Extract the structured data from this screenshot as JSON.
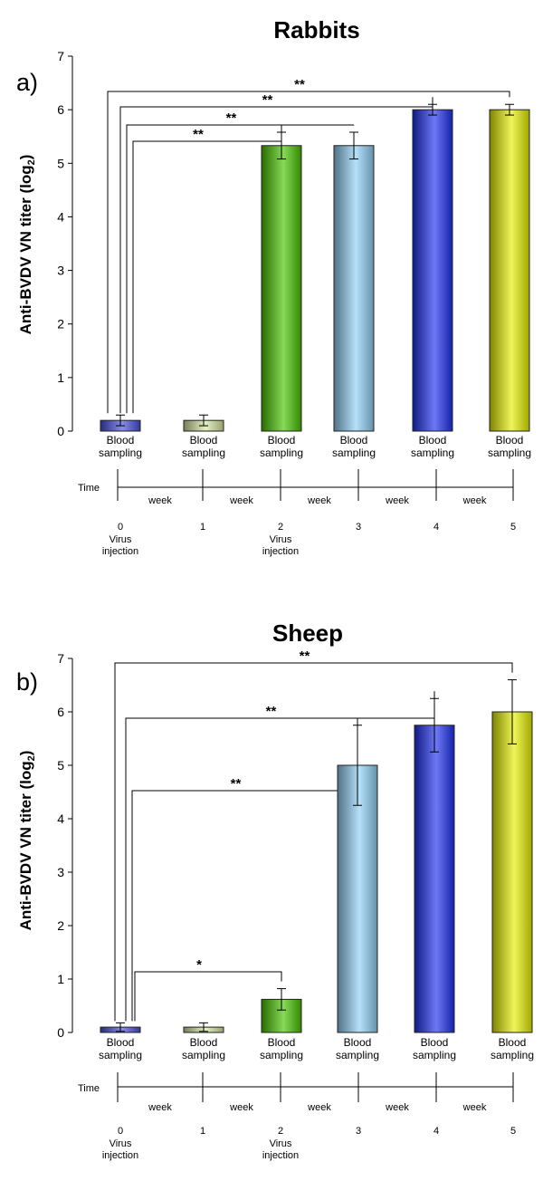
{
  "chart_data": [
    {
      "type": "bar",
      "title": "Rabbits",
      "panel_label": "a)",
      "ylabel": "Anti-BVDV VN titer (log",
      "ylabel_sub": "2",
      "ylabel_close": ")",
      "ylim": [
        0,
        7
      ],
      "yticks": [
        0,
        1,
        2,
        3,
        4,
        5,
        6,
        7
      ],
      "categories": [
        "Blood\nsampling",
        "Blood\nsampling",
        "Blood\nsampling",
        "Blood\nsampling",
        "Blood\nsampling",
        "Blood\nsampling"
      ],
      "values": [
        0.2,
        0.2,
        5.33,
        5.33,
        6.0,
        6.0
      ],
      "errors": [
        0.1,
        0.1,
        0.25,
        0.25,
        0.1,
        0.1
      ],
      "colors": [
        "#4a4ee0",
        "#d6e6a0",
        "#46c400",
        "#8fd0f6",
        "#1e2ff0",
        "#e6f000"
      ],
      "significance": [
        {
          "from": 0,
          "to": 2,
          "label": "**"
        },
        {
          "from": 0,
          "to": 3,
          "label": "**"
        },
        {
          "from": 0,
          "to": 4,
          "label": "**"
        },
        {
          "from": 0,
          "to": 5,
          "label": "**"
        }
      ],
      "timeline": {
        "label": "Time",
        "interval_label": "week",
        "weeks": [
          "0",
          "1",
          "2",
          "3",
          "4",
          "5"
        ],
        "events": [
          "Virus\ninjection",
          "",
          "Virus\ninjection",
          "",
          "",
          ""
        ]
      }
    },
    {
      "type": "bar",
      "title": "Sheep",
      "panel_label": "b)",
      "ylabel": "Anti-BVDV VN titer (log",
      "ylabel_sub": "2",
      "ylabel_close": ")",
      "ylim": [
        0,
        7
      ],
      "yticks": [
        0,
        1,
        2,
        3,
        4,
        5,
        6,
        7
      ],
      "categories": [
        "Blood\nsampling",
        "Blood\nsampling",
        "Blood\nsampling",
        "Blood\nsampling",
        "Blood\nsampling",
        "Blood\nsampling"
      ],
      "values": [
        0.1,
        0.1,
        0.62,
        5.0,
        5.75,
        6.0
      ],
      "errors": [
        0.08,
        0.08,
        0.2,
        0.75,
        0.5,
        0.6
      ],
      "colors": [
        "#4a4ee0",
        "#d6e6a0",
        "#46c400",
        "#8fd0f6",
        "#1e2ff0",
        "#e6f000"
      ],
      "significance": [
        {
          "from": 0,
          "to": 2,
          "label": "*"
        },
        {
          "from": 0,
          "to": 3,
          "label": "**"
        },
        {
          "from": 0,
          "to": 4,
          "label": "**"
        },
        {
          "from": 0,
          "to": 5,
          "label": "**"
        }
      ],
      "timeline": {
        "label": "Time",
        "interval_label": "week",
        "weeks": [
          "0",
          "1",
          "2",
          "3",
          "4",
          "5"
        ],
        "events": [
          "Virus\ninjection",
          "",
          "Virus\ninjection",
          "",
          "",
          ""
        ]
      }
    }
  ]
}
